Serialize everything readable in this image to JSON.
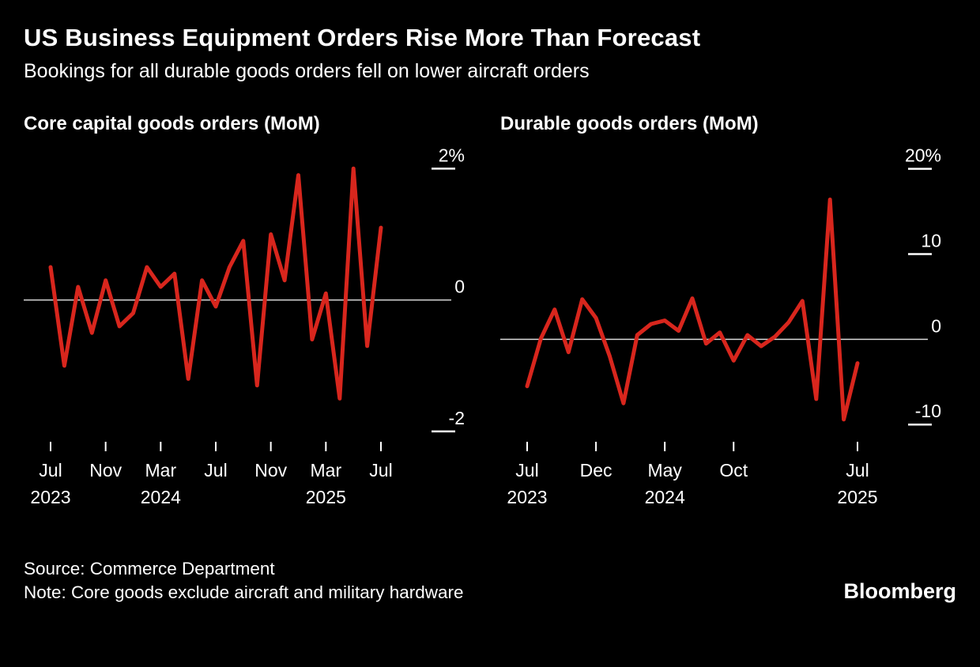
{
  "header": {
    "title": "US Business Equipment Orders Rise More Than Forecast",
    "subtitle": "Bookings for all durable goods orders fell on lower aircraft orders"
  },
  "footer": {
    "source": "Source: Commerce Department",
    "note": "Note: Core goods exclude aircraft and military hardware",
    "brand": "Bloomberg"
  },
  "colors": {
    "background": "#000000",
    "line": "#d8261d",
    "text": "#ffffff",
    "zero_line": "#d9d9d9",
    "tick": "#ffffff"
  },
  "chart_data": [
    {
      "type": "line",
      "title": "Core capital goods orders (MoM)",
      "unit": "percent",
      "legend": "none",
      "grid": "zero-line-only",
      "x": [
        "Jul 2023",
        "Aug 2023",
        "Sep 2023",
        "Oct 2023",
        "Nov 2023",
        "Dec 2023",
        "Jan 2024",
        "Feb 2024",
        "Mar 2024",
        "Apr 2024",
        "May 2024",
        "Jun 2024",
        "Jul 2024",
        "Aug 2024",
        "Sep 2024",
        "Oct 2024",
        "Nov 2024",
        "Dec 2024",
        "Jan 2025",
        "Feb 2025",
        "Mar 2025",
        "Apr 2025",
        "May 2025",
        "Jun 2025",
        "Jul 2025"
      ],
      "values": [
        0.5,
        -1.0,
        0.2,
        -0.5,
        0.3,
        -0.4,
        -0.2,
        0.5,
        0.2,
        0.4,
        -1.2,
        0.3,
        -0.1,
        0.5,
        0.9,
        -1.3,
        1.0,
        0.3,
        1.9,
        -0.6,
        0.1,
        -1.5,
        2.0,
        -0.7,
        1.1
      ],
      "ylim": [
        -2.35,
        2.1
      ],
      "yticks": [
        {
          "value": 2,
          "label": "2%"
        },
        {
          "value": 0,
          "label": "0"
        },
        {
          "value": -2,
          "label": "-2"
        }
      ],
      "xticks": [
        {
          "index": 0,
          "label": "Jul",
          "year": "2023"
        },
        {
          "index": 4,
          "label": "Nov",
          "year": ""
        },
        {
          "index": 8,
          "label": "Mar",
          "year": "2024"
        },
        {
          "index": 12,
          "label": "Jul",
          "year": ""
        },
        {
          "index": 16,
          "label": "Nov",
          "year": ""
        },
        {
          "index": 20,
          "label": "Mar",
          "year": "2025"
        },
        {
          "index": 24,
          "label": "Jul",
          "year": ""
        }
      ]
    },
    {
      "type": "line",
      "title": "Durable goods orders (MoM)",
      "unit": "percent",
      "legend": "none",
      "grid": "zero-line-only",
      "x": [
        "Jul 2023",
        "Aug 2023",
        "Sep 2023",
        "Oct 2023",
        "Nov 2023",
        "Dec 2023",
        "Jan 2024",
        "Feb 2024",
        "Mar 2024",
        "Apr 2024",
        "May 2024",
        "Jun 2024",
        "Jul 2024",
        "Aug 2024",
        "Sep 2024",
        "Oct 2024",
        "Nov 2024",
        "Dec 2024",
        "Jan 2025",
        "Feb 2025",
        "Mar 2025",
        "Apr 2025",
        "May 2025",
        "Jun 2025",
        "Jul 2025"
      ],
      "values": [
        -5.5,
        0.1,
        3.5,
        -1.5,
        4.7,
        2.5,
        -2.0,
        -7.5,
        0.5,
        1.8,
        2.2,
        1.0,
        4.8,
        -0.5,
        0.8,
        -2.5,
        0.5,
        -0.8,
        0.3,
        2.0,
        4.5,
        -7.0,
        16.4,
        -9.4,
        -2.8
      ],
      "ylim": [
        -13.5,
        20.8
      ],
      "yticks": [
        {
          "value": 20,
          "label": "20%"
        },
        {
          "value": 10,
          "label": "10"
        },
        {
          "value": 0,
          "label": "0"
        },
        {
          "value": -10,
          "label": "-10"
        }
      ],
      "xticks": [
        {
          "index": 0,
          "label": "Jul",
          "year": "2023"
        },
        {
          "index": 5,
          "label": "Dec",
          "year": ""
        },
        {
          "index": 10,
          "label": "May",
          "year": "2024"
        },
        {
          "index": 15,
          "label": "Oct",
          "year": ""
        },
        {
          "index": 24,
          "label": "Jul",
          "year": "2025"
        }
      ]
    }
  ]
}
